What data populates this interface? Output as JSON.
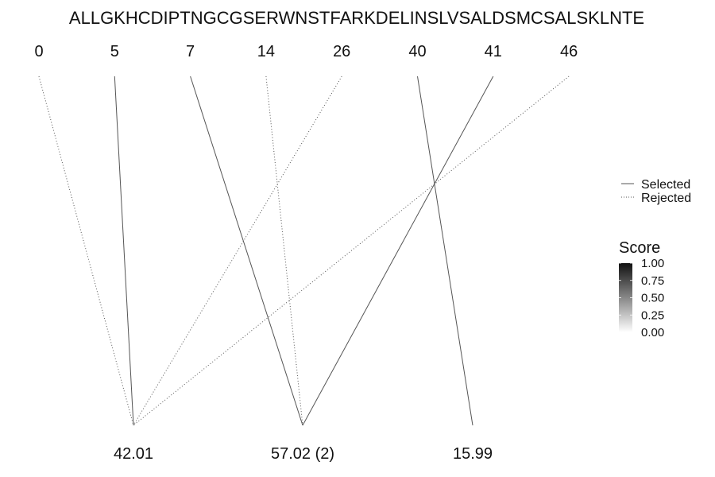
{
  "chart_data": {
    "type": "bipartite-line",
    "sequence": "ALLGKHCDIPTNGCGSERWNSTFARKDELINSLVSALDSMCSALSKLNTE",
    "positions": [
      "0",
      "5",
      "7",
      "14",
      "26",
      "40",
      "41",
      "46"
    ],
    "masses": [
      "42.01",
      "57.02 (2)",
      "15.99"
    ],
    "links": [
      {
        "position": "0",
        "mass": "42.01",
        "status": "Rejected"
      },
      {
        "position": "5",
        "mass": "42.01",
        "status": "Selected"
      },
      {
        "position": "26",
        "mass": "42.01",
        "status": "Rejected"
      },
      {
        "position": "46",
        "mass": "42.01",
        "status": "Rejected"
      },
      {
        "position": "7",
        "mass": "57.02 (2)",
        "status": "Selected"
      },
      {
        "position": "14",
        "mass": "57.02 (2)",
        "status": "Rejected"
      },
      {
        "position": "41",
        "mass": "57.02 (2)",
        "status": "Selected"
      },
      {
        "position": "40",
        "mass": "15.99",
        "status": "Selected"
      }
    ],
    "legend_linetype": {
      "entries": [
        {
          "label": "Selected",
          "style": "solid"
        },
        {
          "label": "Rejected",
          "style": "dotted"
        }
      ]
    },
    "legend_score": {
      "title": "Score",
      "ticks": [
        "1.00",
        "0.75",
        "0.50",
        "0.25",
        "0.00"
      ],
      "range": [
        0,
        1
      ],
      "colors": {
        "low": "#ffffff",
        "high": "#111111"
      }
    },
    "line_color": "#555555"
  }
}
